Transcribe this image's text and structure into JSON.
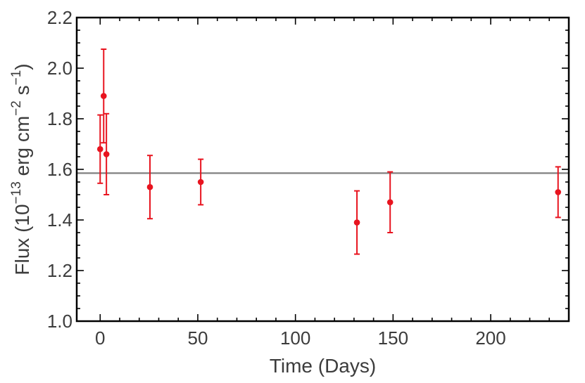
{
  "chart_data": {
    "type": "scatter",
    "xlabel": "Time (Days)",
    "ylabel": {
      "prefix": "Flux (10",
      "exp1": "−13",
      "mid": " erg cm",
      "exp2": "−2",
      "mid2": " s",
      "exp3": "−1",
      "suffix": ")"
    },
    "xlim": [
      -12,
      240
    ],
    "ylim": [
      1.0,
      2.2
    ],
    "xticks": [
      0,
      50,
      100,
      150,
      200
    ],
    "yticks": [
      1.0,
      1.2,
      1.4,
      1.6,
      1.8,
      2.0,
      2.2
    ],
    "xtick_labels": [
      "0",
      "50",
      "100",
      "150",
      "200"
    ],
    "ytick_labels": [
      "1.0",
      "1.2",
      "1.4",
      "1.6",
      "1.8",
      "2.0",
      "2.2"
    ],
    "reference_line": {
      "y": 1.585,
      "color": "#808080"
    },
    "series": [
      {
        "color": "#e8141f",
        "points": [
          {
            "x": 0.0,
            "y": 1.68,
            "ylow": 1.545,
            "yhigh": 1.815
          },
          {
            "x": 1.8,
            "y": 1.89,
            "ylow": 1.705,
            "yhigh": 2.075
          },
          {
            "x": 3.2,
            "y": 1.66,
            "ylow": 1.5,
            "yhigh": 1.82
          },
          {
            "x": 25.5,
            "y": 1.53,
            "ylow": 1.405,
            "yhigh": 1.655
          },
          {
            "x": 51.5,
            "y": 1.55,
            "ylow": 1.46,
            "yhigh": 1.64
          },
          {
            "x": 131.5,
            "y": 1.39,
            "ylow": 1.265,
            "yhigh": 1.515
          },
          {
            "x": 148.5,
            "y": 1.47,
            "ylow": 1.35,
            "yhigh": 1.59
          },
          {
            "x": 234.5,
            "y": 1.51,
            "ylow": 1.41,
            "yhigh": 1.61
          }
        ]
      }
    ]
  }
}
